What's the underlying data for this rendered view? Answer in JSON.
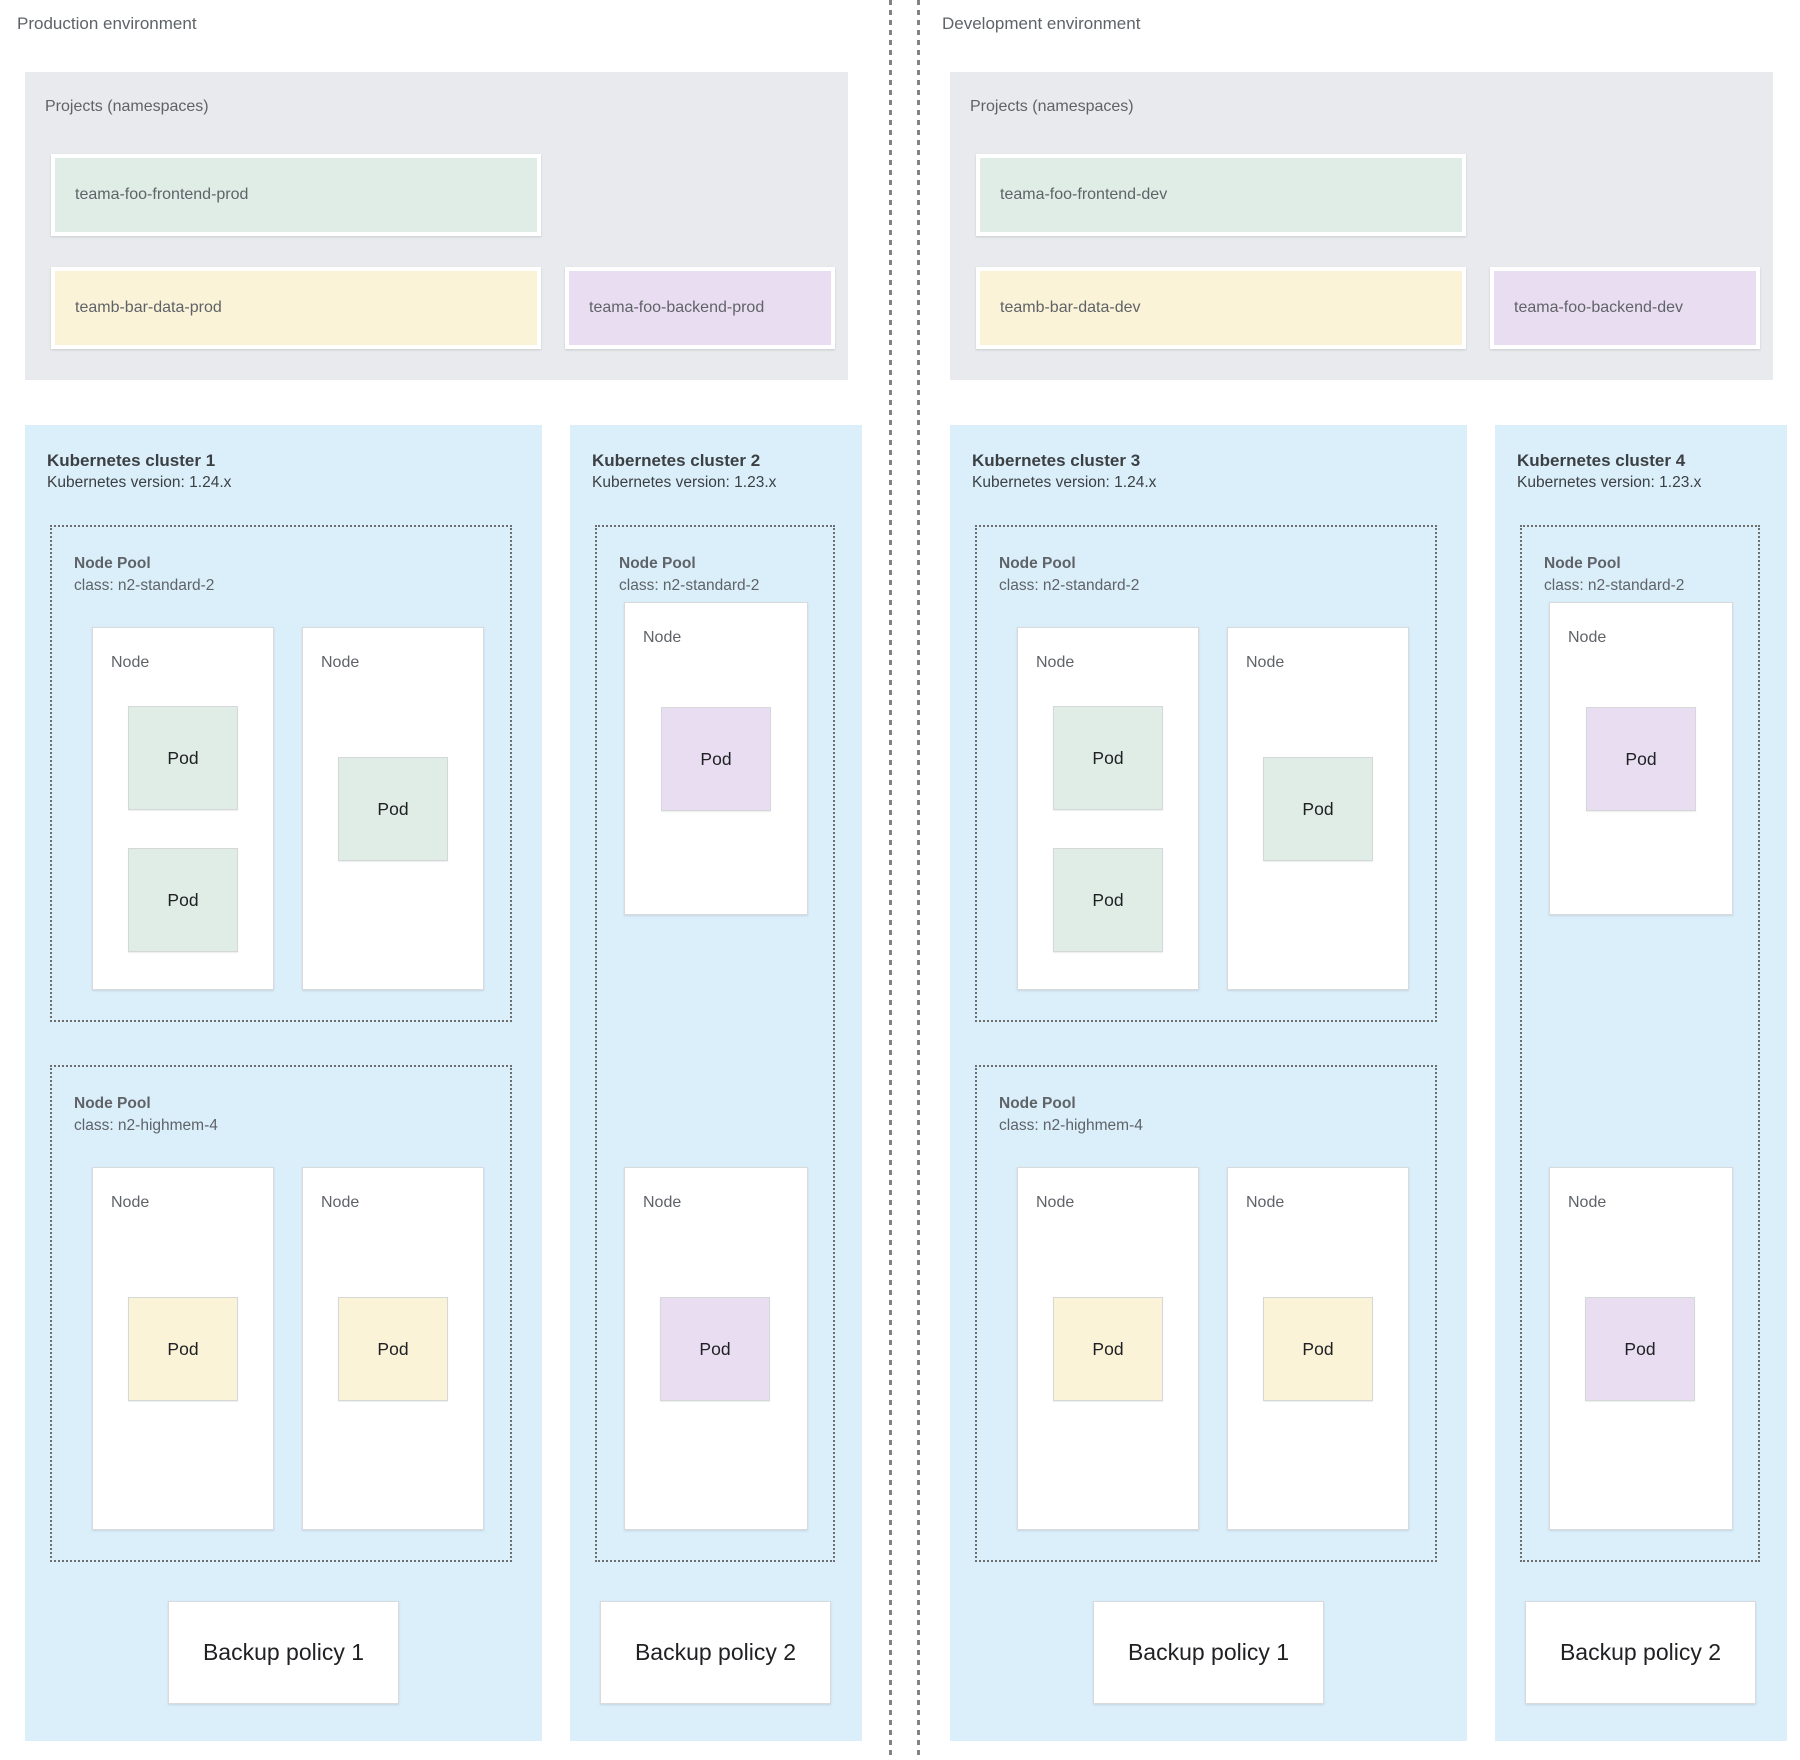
{
  "colors": {
    "cluster_bg": "#DBEFFB",
    "projects_bg": "#E8EAED",
    "namespace_green": "#DFEDE6",
    "namespace_yellow": "#FBF3D8",
    "namespace_purple": "#E9DEF1",
    "pod_green": "#DFEFE6",
    "pod_yellow": "#FBF3D8",
    "pod_purple": "#E9DEF1",
    "label_gray": "#5F6368",
    "title_dark": "#3C4043",
    "pod_text": "#202124"
  },
  "environments": [
    {
      "label": "Production environment",
      "projects": {
        "title": "Projects (namespaces)",
        "namespaces": [
          {
            "name": "teama-foo-frontend-prod",
            "color": "green"
          },
          {
            "name": "teamb-bar-data-prod",
            "color": "yellow"
          },
          {
            "name": "teama-foo-backend-prod",
            "color": "purple"
          }
        ]
      },
      "clusters": [
        {
          "title": "Kubernetes cluster 1",
          "version": "Kubernetes version: 1.24.x",
          "node_pools": [
            {
              "title": "Node Pool",
              "class": "class: n2-standard-2",
              "nodes": [
                {
                  "label": "Node",
                  "pods": [
                    {
                      "label": "Pod",
                      "color": "green"
                    },
                    {
                      "label": "Pod",
                      "color": "green"
                    }
                  ]
                },
                {
                  "label": "Node",
                  "pods": [
                    {
                      "label": "Pod",
                      "color": "green"
                    }
                  ]
                }
              ]
            },
            {
              "title": "Node Pool",
              "class": "class: n2-highmem-4",
              "nodes": [
                {
                  "label": "Node",
                  "pods": [
                    {
                      "label": "Pod",
                      "color": "yellow"
                    }
                  ]
                },
                {
                  "label": "Node",
                  "pods": [
                    {
                      "label": "Pod",
                      "color": "yellow"
                    }
                  ]
                }
              ]
            }
          ],
          "backup_policy": "Backup policy 1"
        },
        {
          "title": "Kubernetes cluster 2",
          "version": "Kubernetes version: 1.23.x",
          "node_pools": [
            {
              "title": "Node Pool",
              "class": "class: n2-standard-2",
              "nodes": [
                {
                  "label": "Node",
                  "pods": [
                    {
                      "label": "Pod",
                      "color": "purple"
                    }
                  ]
                },
                {
                  "label": "Node",
                  "pods": [
                    {
                      "label": "Pod",
                      "color": "purple"
                    }
                  ]
                }
              ]
            }
          ],
          "backup_policy": "Backup policy 2"
        }
      ]
    },
    {
      "label": "Development environment",
      "projects": {
        "title": "Projects (namespaces)",
        "namespaces": [
          {
            "name": "teama-foo-frontend-dev",
            "color": "green"
          },
          {
            "name": "teamb-bar-data-dev",
            "color": "yellow"
          },
          {
            "name": "teama-foo-backend-dev",
            "color": "purple"
          }
        ]
      },
      "clusters": [
        {
          "title": "Kubernetes cluster 3",
          "version": "Kubernetes version: 1.24.x",
          "node_pools": [
            {
              "title": "Node Pool",
              "class": "class: n2-standard-2",
              "nodes": [
                {
                  "label": "Node",
                  "pods": [
                    {
                      "label": "Pod",
                      "color": "green"
                    },
                    {
                      "label": "Pod",
                      "color": "green"
                    }
                  ]
                },
                {
                  "label": "Node",
                  "pods": [
                    {
                      "label": "Pod",
                      "color": "green"
                    }
                  ]
                }
              ]
            },
            {
              "title": "Node Pool",
              "class": "class: n2-highmem-4",
              "nodes": [
                {
                  "label": "Node",
                  "pods": [
                    {
                      "label": "Pod",
                      "color": "yellow"
                    }
                  ]
                },
                {
                  "label": "Node",
                  "pods": [
                    {
                      "label": "Pod",
                      "color": "yellow"
                    }
                  ]
                }
              ]
            }
          ],
          "backup_policy": "Backup policy 1"
        },
        {
          "title": "Kubernetes cluster 4",
          "version": "Kubernetes version: 1.23.x",
          "node_pools": [
            {
              "title": "Node Pool",
              "class": "class: n2-standard-2",
              "nodes": [
                {
                  "label": "Node",
                  "pods": [
                    {
                      "label": "Pod",
                      "color": "purple"
                    }
                  ]
                },
                {
                  "label": "Node",
                  "pods": [
                    {
                      "label": "Pod",
                      "color": "purple"
                    }
                  ]
                }
              ]
            }
          ],
          "backup_policy": "Backup policy 2"
        }
      ]
    }
  ]
}
